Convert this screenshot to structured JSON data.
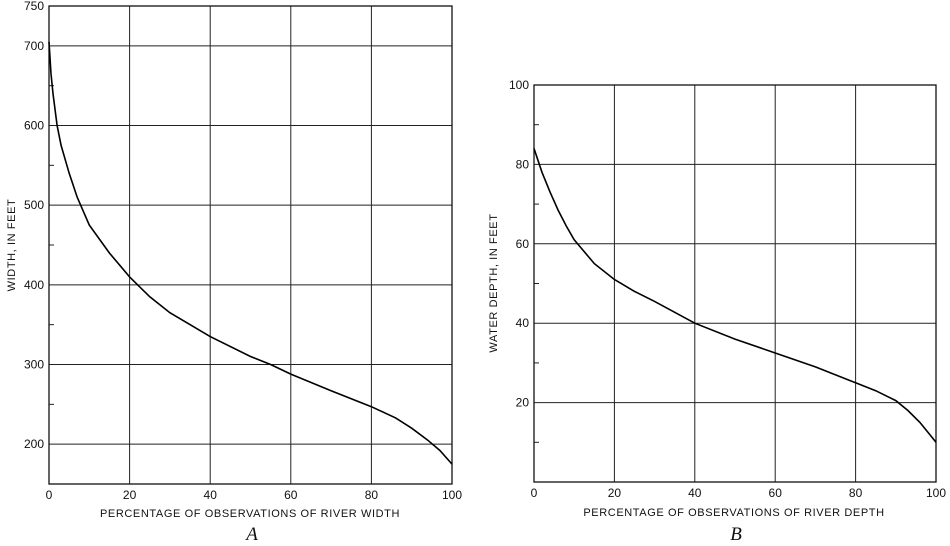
{
  "chart_data": [
    {
      "type": "line",
      "panel_label": "A",
      "xlabel": "PERCENTAGE OF OBSERVATIONS OF RIVER WIDTH",
      "ylabel": "WIDTH, IN FEET",
      "xlim": [
        0,
        100
      ],
      "ylim": [
        150,
        750
      ],
      "xticks": [
        0,
        20,
        40,
        60,
        80,
        100
      ],
      "yticks": [
        200,
        300,
        400,
        500,
        600,
        700,
        750
      ],
      "y_minor_ticks": [
        250,
        350,
        450,
        550,
        650
      ],
      "grid": true,
      "series": [
        {
          "x": [
            0,
            0.5,
            1,
            2,
            3,
            5,
            7,
            10,
            15,
            20,
            25,
            30,
            40,
            50,
            55,
            60,
            70,
            80,
            86,
            90,
            94,
            97,
            100
          ],
          "y": [
            705,
            665,
            640,
            600,
            575,
            540,
            510,
            475,
            440,
            410,
            385,
            365,
            335,
            310,
            300,
            288,
            267,
            247,
            233,
            220,
            205,
            192,
            175
          ]
        }
      ]
    },
    {
      "type": "line",
      "panel_label": "B",
      "xlabel": "PERCENTAGE OF OBSERVATIONS OF RIVER DEPTH",
      "ylabel": "WATER DEPTH, IN FEET",
      "xlim": [
        0,
        100
      ],
      "ylim": [
        0,
        100
      ],
      "xticks": [
        0,
        20,
        40,
        60,
        80,
        100
      ],
      "yticks": [
        20,
        40,
        60,
        80,
        100
      ],
      "y_minor_ticks": [
        10,
        30,
        50,
        70,
        90
      ],
      "grid": true,
      "series": [
        {
          "x": [
            0,
            2,
            4,
            6,
            8,
            10,
            15,
            20,
            25,
            30,
            40,
            50,
            60,
            70,
            80,
            85,
            90,
            93,
            96,
            98,
            100
          ],
          "y": [
            84,
            78,
            73,
            68.5,
            64.5,
            61,
            55,
            51,
            48,
            45.5,
            40,
            36,
            32.5,
            29,
            25,
            23,
            20.5,
            18,
            15,
            12.5,
            10
          ]
        }
      ]
    }
  ]
}
